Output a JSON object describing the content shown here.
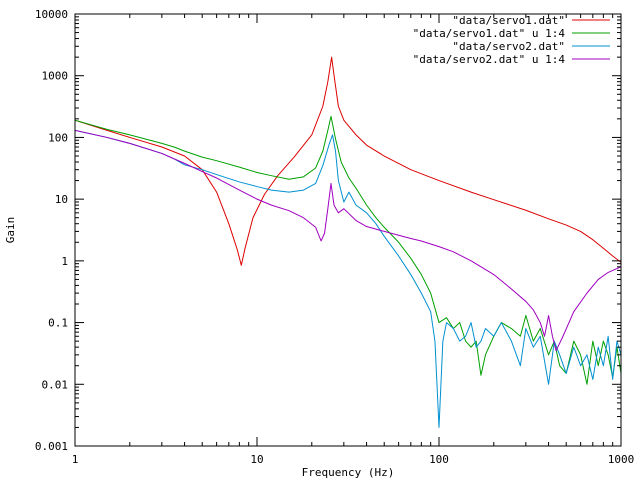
{
  "chart_data": {
    "type": "line",
    "title": "",
    "xlabel": "Frequency (Hz)",
    "ylabel": "Gain",
    "xscale": "log",
    "yscale": "log",
    "xlim": [
      1,
      1000
    ],
    "ylim": [
      0.001,
      10000
    ],
    "x_ticks": [
      {
        "value": 1,
        "label": "1"
      },
      {
        "value": 10,
        "label": "10"
      },
      {
        "value": 100,
        "label": "100"
      },
      {
        "value": 1000,
        "label": "1000"
      }
    ],
    "y_ticks": [
      {
        "value": 0.001,
        "label": "0.001"
      },
      {
        "value": 0.01,
        "label": "0.01"
      },
      {
        "value": 0.1,
        "label": "0.1"
      },
      {
        "value": 1,
        "label": "1"
      },
      {
        "value": 10,
        "label": "10"
      },
      {
        "value": 100,
        "label": "100"
      },
      {
        "value": 1000,
        "label": "1000"
      },
      {
        "value": 10000,
        "label": "10000"
      }
    ],
    "grid": false,
    "legend_position": "top-right",
    "series": [
      {
        "name": "\"data/servo1.dat\"",
        "color": "#dd0000",
        "points": [
          [
            1,
            190
          ],
          [
            1.5,
            130
          ],
          [
            2,
            100
          ],
          [
            3,
            70
          ],
          [
            4,
            50
          ],
          [
            5,
            30
          ],
          [
            6,
            13
          ],
          [
            7,
            4
          ],
          [
            7.8,
            1.5
          ],
          [
            8.2,
            0.85
          ],
          [
            8.6,
            1.6
          ],
          [
            9.5,
            5
          ],
          [
            11,
            12
          ],
          [
            13,
            24
          ],
          [
            16,
            48
          ],
          [
            20,
            110
          ],
          [
            23,
            320
          ],
          [
            24.5,
            800
          ],
          [
            25.7,
            2000
          ],
          [
            26.8,
            800
          ],
          [
            28,
            320
          ],
          [
            30,
            190
          ],
          [
            35,
            110
          ],
          [
            40,
            75
          ],
          [
            50,
            50
          ],
          [
            70,
            30
          ],
          [
            100,
            20
          ],
          [
            150,
            13
          ],
          [
            200,
            9.8
          ],
          [
            300,
            6.6
          ],
          [
            400,
            4.8
          ],
          [
            500,
            3.8
          ],
          [
            600,
            3
          ],
          [
            700,
            2.2
          ],
          [
            800,
            1.6
          ],
          [
            900,
            1.2
          ],
          [
            1000,
            0.95
          ]
        ]
      },
      {
        "name": "\"data/servo1.dat\" u 1:4",
        "color": "#00a000",
        "points": [
          [
            1,
            190
          ],
          [
            1.5,
            135
          ],
          [
            2,
            110
          ],
          [
            3,
            80
          ],
          [
            3.5,
            70
          ],
          [
            4,
            60
          ],
          [
            5,
            48
          ],
          [
            6,
            42
          ],
          [
            8,
            33
          ],
          [
            10,
            27
          ],
          [
            12,
            24
          ],
          [
            15,
            21
          ],
          [
            18,
            23
          ],
          [
            21,
            32
          ],
          [
            23,
            60
          ],
          [
            24.5,
            130
          ],
          [
            25.5,
            220
          ],
          [
            27,
            95
          ],
          [
            29,
            40
          ],
          [
            32,
            22
          ],
          [
            35,
            15
          ],
          [
            40,
            8
          ],
          [
            45,
            5
          ],
          [
            50,
            3.5
          ],
          [
            60,
            2
          ],
          [
            70,
            1.1
          ],
          [
            80,
            0.6
          ],
          [
            90,
            0.3
          ],
          [
            100,
            0.1
          ],
          [
            110,
            0.12
          ],
          [
            120,
            0.08
          ],
          [
            130,
            0.1
          ],
          [
            140,
            0.05
          ],
          [
            150,
            0.04
          ],
          [
            160,
            0.05
          ],
          [
            170,
            0.014
          ],
          [
            180,
            0.03
          ],
          [
            200,
            0.06
          ],
          [
            220,
            0.1
          ],
          [
            250,
            0.08
          ],
          [
            280,
            0.06
          ],
          [
            300,
            0.13
          ],
          [
            330,
            0.05
          ],
          [
            360,
            0.08
          ],
          [
            400,
            0.03
          ],
          [
            430,
            0.05
          ],
          [
            460,
            0.02
          ],
          [
            500,
            0.015
          ],
          [
            550,
            0.05
          ],
          [
            600,
            0.03
          ],
          [
            650,
            0.01
          ],
          [
            700,
            0.05
          ],
          [
            750,
            0.02
          ],
          [
            800,
            0.05
          ],
          [
            850,
            0.03
          ],
          [
            900,
            0.013
          ],
          [
            950,
            0.04
          ],
          [
            1000,
            0.015
          ]
        ]
      },
      {
        "name": "\"data/servo2.dat\"",
        "color": "#0090d0",
        "points": [
          [
            1,
            130
          ],
          [
            1.5,
            100
          ],
          [
            2,
            80
          ],
          [
            3,
            55
          ],
          [
            3.5,
            45
          ],
          [
            4,
            36
          ],
          [
            5,
            30
          ],
          [
            6,
            25
          ],
          [
            8,
            19
          ],
          [
            10,
            16
          ],
          [
            12,
            14
          ],
          [
            15,
            13
          ],
          [
            18,
            14
          ],
          [
            21,
            18
          ],
          [
            23,
            35
          ],
          [
            25,
            80
          ],
          [
            26,
            110
          ],
          [
            27,
            60
          ],
          [
            28,
            20
          ],
          [
            30,
            9
          ],
          [
            32,
            13
          ],
          [
            35,
            8
          ],
          [
            40,
            6
          ],
          [
            45,
            4
          ],
          [
            50,
            2.5
          ],
          [
            60,
            1.2
          ],
          [
            70,
            0.6
          ],
          [
            80,
            0.3
          ],
          [
            90,
            0.15
          ],
          [
            95,
            0.05
          ],
          [
            100,
            0.002
          ],
          [
            105,
            0.05
          ],
          [
            110,
            0.1
          ],
          [
            120,
            0.08
          ],
          [
            130,
            0.05
          ],
          [
            140,
            0.06
          ],
          [
            150,
            0.1
          ],
          [
            160,
            0.04
          ],
          [
            170,
            0.05
          ],
          [
            180,
            0.08
          ],
          [
            200,
            0.06
          ],
          [
            220,
            0.1
          ],
          [
            250,
            0.05
          ],
          [
            280,
            0.02
          ],
          [
            300,
            0.08
          ],
          [
            330,
            0.04
          ],
          [
            360,
            0.06
          ],
          [
            400,
            0.01
          ],
          [
            430,
            0.05
          ],
          [
            460,
            0.03
          ],
          [
            500,
            0.015
          ],
          [
            550,
            0.04
          ],
          [
            600,
            0.02
          ],
          [
            650,
            0.03
          ],
          [
            700,
            0.012
          ],
          [
            750,
            0.04
          ],
          [
            800,
            0.02
          ],
          [
            850,
            0.06
          ],
          [
            900,
            0.012
          ],
          [
            950,
            0.05
          ],
          [
            1000,
            0.03
          ]
        ]
      },
      {
        "name": "\"data/servo2.dat\" u 1:4",
        "color": "#a000c0",
        "points": [
          [
            1,
            130
          ],
          [
            1.5,
            100
          ],
          [
            2,
            80
          ],
          [
            3,
            55
          ],
          [
            4,
            38
          ],
          [
            5,
            28
          ],
          [
            6,
            22
          ],
          [
            8,
            14
          ],
          [
            10,
            10
          ],
          [
            12,
            8
          ],
          [
            15,
            6.5
          ],
          [
            18,
            5
          ],
          [
            21,
            3.5
          ],
          [
            22.5,
            2.1
          ],
          [
            23.5,
            2.8
          ],
          [
            24.5,
            7
          ],
          [
            25.5,
            18
          ],
          [
            26.5,
            8
          ],
          [
            28,
            6
          ],
          [
            30,
            7
          ],
          [
            35,
            4.5
          ],
          [
            40,
            3.6
          ],
          [
            50,
            3
          ],
          [
            60,
            2.6
          ],
          [
            70,
            2.3
          ],
          [
            80,
            2.1
          ],
          [
            100,
            1.7
          ],
          [
            120,
            1.4
          ],
          [
            150,
            1
          ],
          [
            200,
            0.6
          ],
          [
            250,
            0.35
          ],
          [
            300,
            0.22
          ],
          [
            330,
            0.16
          ],
          [
            360,
            0.1
          ],
          [
            380,
            0.06
          ],
          [
            400,
            0.13
          ],
          [
            420,
            0.06
          ],
          [
            440,
            0.035
          ],
          [
            480,
            0.06
          ],
          [
            550,
            0.15
          ],
          [
            650,
            0.3
          ],
          [
            750,
            0.5
          ],
          [
            850,
            0.65
          ],
          [
            1000,
            0.8
          ]
        ]
      }
    ]
  }
}
